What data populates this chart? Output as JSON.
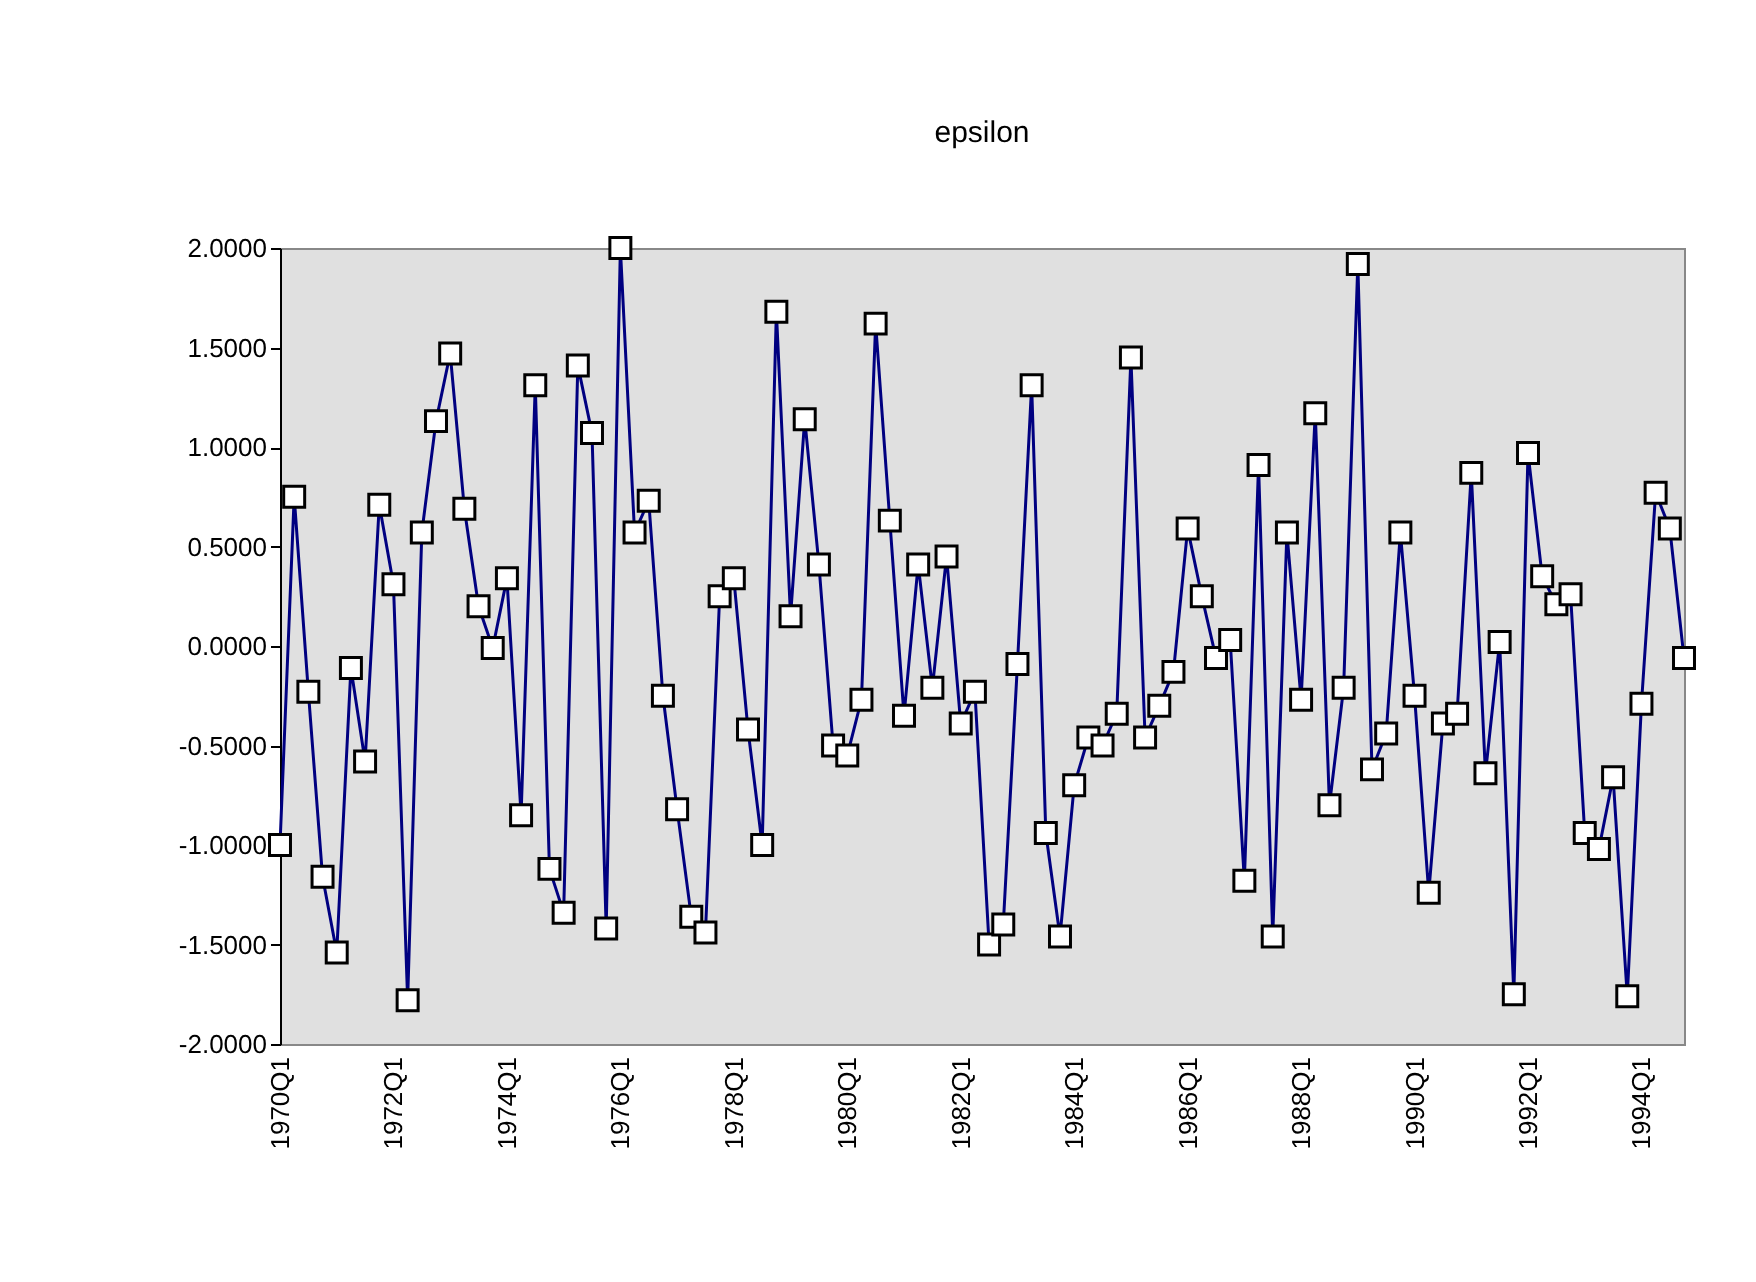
{
  "chart_data": {
    "type": "line",
    "title": "epsilon",
    "categories": [
      "1970Q1",
      null,
      null,
      null,
      null,
      null,
      null,
      null,
      "1972Q1",
      null,
      null,
      null,
      null,
      null,
      null,
      null,
      "1974Q1",
      null,
      null,
      null,
      null,
      null,
      null,
      null,
      "1976Q1",
      null,
      null,
      null,
      null,
      null,
      null,
      null,
      "1978Q1",
      null,
      null,
      null,
      null,
      null,
      null,
      null,
      "1980Q1",
      null,
      null,
      null,
      null,
      null,
      null,
      null,
      "1982Q1",
      null,
      null,
      null,
      null,
      null,
      null,
      null,
      "1984Q1",
      null,
      null,
      null,
      null,
      null,
      null,
      null,
      "1986Q1",
      null,
      null,
      null,
      null,
      null,
      null,
      null,
      "1988Q1",
      null,
      null,
      null,
      null,
      null,
      null,
      null,
      "1990Q1",
      null,
      null,
      null,
      null,
      null,
      null,
      null,
      "1992Q1",
      null,
      null,
      null,
      null,
      null,
      null,
      null,
      "1994Q1",
      null,
      null,
      null
    ],
    "series": [
      {
        "color": "#000080",
        "values": [
          -1.0,
          0.75,
          -0.23,
          -1.16,
          -1.54,
          -0.11,
          -0.58,
          0.71,
          0.31,
          -1.78,
          0.57,
          1.13,
          1.47,
          0.69,
          0.2,
          -0.01,
          0.34,
          -0.85,
          1.31,
          -1.12,
          -1.34,
          1.41,
          1.07,
          -1.42,
          2.0,
          0.57,
          0.73,
          -0.25,
          -0.82,
          -1.36,
          -1.44,
          0.25,
          0.34,
          -0.42,
          -1.0,
          1.68,
          0.15,
          1.14,
          0.41,
          -0.5,
          -0.55,
          -0.27,
          1.62,
          0.63,
          -0.35,
          0.41,
          -0.21,
          0.45,
          -0.39,
          -0.23,
          -1.5,
          -1.4,
          -0.09,
          1.31,
          -0.94,
          -1.46,
          -0.7,
          -0.46,
          -0.5,
          -0.34,
          1.45,
          -0.46,
          -0.3,
          -0.13,
          0.59,
          0.25,
          -0.06,
          0.03,
          -1.18,
          0.91,
          -1.46,
          0.57,
          -0.27,
          1.17,
          -0.8,
          -0.21,
          1.92,
          -0.62,
          -0.44,
          0.57,
          -0.25,
          -1.24,
          -0.39,
          -0.34,
          0.87,
          -0.64,
          0.02,
          -1.75,
          0.97,
          0.35,
          0.21,
          0.26,
          -0.94,
          -1.02,
          -0.66,
          -1.76,
          -0.29,
          0.77,
          0.59,
          -0.06
        ]
      }
    ],
    "ylim": [
      -2,
      2
    ],
    "yticks": [
      {
        "value": -2,
        "label": "-2.0000"
      },
      {
        "value": -1.5,
        "label": "-1.5000"
      },
      {
        "value": -1,
        "label": "-1.0000"
      },
      {
        "value": -0.5,
        "label": "-0.5000"
      },
      {
        "value": 0,
        "label": "0.0000"
      },
      {
        "value": 0.5,
        "label": "0.5000"
      },
      {
        "value": 1,
        "label": "1.0000"
      },
      {
        "value": 1.5,
        "label": "1.5000"
      },
      {
        "value": 2,
        "label": "2.0000"
      }
    ],
    "grid": false,
    "marker": "square",
    "line_style": "solid"
  }
}
